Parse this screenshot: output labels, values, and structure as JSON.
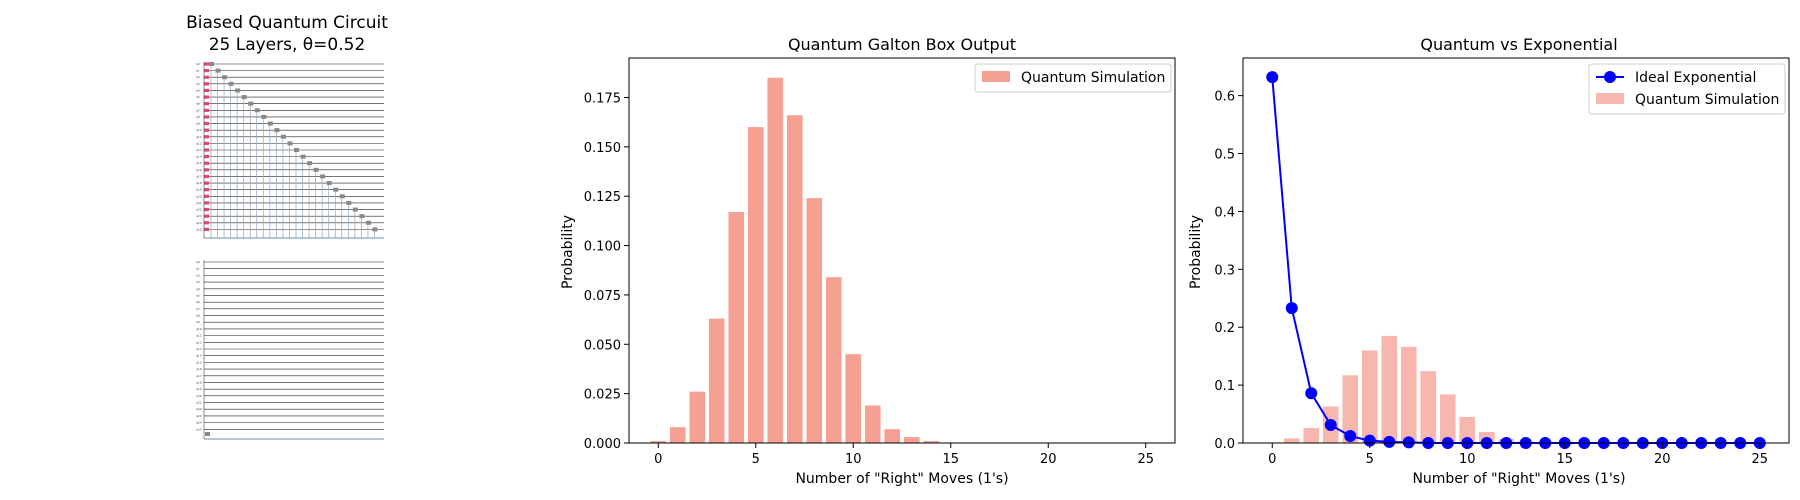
{
  "circuit": {
    "title_line1": "Biased Quantum Circuit",
    "title_line2": "25 Layers, θ=0.52",
    "qubits": 26,
    "layers": 25
  },
  "chart_data": [
    {
      "type": "bar",
      "title": "Quantum Galton Box Output",
      "xlabel": "Number of \"Right\" Moves (1's)",
      "ylabel": "Probability",
      "x": [
        0,
        1,
        2,
        3,
        4,
        5,
        6,
        7,
        8,
        9,
        10,
        11,
        12,
        13,
        14,
        15,
        16,
        17,
        18,
        19,
        20,
        21,
        22,
        23,
        24,
        25
      ],
      "xlim": [
        -1.5,
        26.5
      ],
      "ylim": [
        0,
        0.195
      ],
      "xticks": [
        0,
        5,
        10,
        15,
        20,
        25
      ],
      "yticks": [
        0,
        0.025,
        0.05,
        0.075,
        0.1,
        0.125,
        0.15,
        0.175
      ],
      "ytick_labels": [
        "0.000",
        "0.025",
        "0.050",
        "0.075",
        "0.100",
        "0.125",
        "0.150",
        "0.175"
      ],
      "legend_position": "top-right",
      "series": [
        {
          "name": "Quantum Simulation",
          "color": "#f4a093",
          "values": [
            0.001,
            0.008,
            0.026,
            0.063,
            0.117,
            0.16,
            0.185,
            0.166,
            0.124,
            0.084,
            0.045,
            0.019,
            0.007,
            0.003,
            0.001,
            0,
            0,
            0,
            0,
            0,
            0,
            0,
            0,
            0,
            0,
            0
          ]
        }
      ]
    },
    {
      "type": "bar+line",
      "title": "Quantum vs Exponential",
      "xlabel": "Number of \"Right\" Moves (1's)",
      "ylabel": "Probability",
      "x": [
        0,
        1,
        2,
        3,
        4,
        5,
        6,
        7,
        8,
        9,
        10,
        11,
        12,
        13,
        14,
        15,
        16,
        17,
        18,
        19,
        20,
        21,
        22,
        23,
        24,
        25
      ],
      "xlim": [
        -1.5,
        26.5
      ],
      "ylim": [
        0,
        0.665
      ],
      "xticks": [
        0,
        5,
        10,
        15,
        20,
        25
      ],
      "yticks": [
        0,
        0.1,
        0.2,
        0.3,
        0.4,
        0.5,
        0.6
      ],
      "ytick_labels": [
        "0.0",
        "0.1",
        "0.2",
        "0.3",
        "0.4",
        "0.5",
        "0.6"
      ],
      "legend_position": "top-right",
      "series": [
        {
          "name": "Ideal Exponential",
          "type": "line",
          "color": "#0000ff",
          "values": [
            0.632,
            0.233,
            0.086,
            0.031,
            0.012,
            0.004,
            0.002,
            0.001,
            0,
            0,
            0,
            0,
            0,
            0,
            0,
            0,
            0,
            0,
            0,
            0,
            0,
            0,
            0,
            0,
            0,
            0
          ]
        },
        {
          "name": "Quantum Simulation",
          "type": "bar",
          "color": "#f7b6ae",
          "values": [
            0.001,
            0.008,
            0.026,
            0.063,
            0.117,
            0.16,
            0.185,
            0.166,
            0.124,
            0.084,
            0.045,
            0.019,
            0.007,
            0.003,
            0.001,
            0,
            0,
            0,
            0,
            0,
            0,
            0,
            0,
            0,
            0,
            0
          ]
        }
      ]
    }
  ]
}
